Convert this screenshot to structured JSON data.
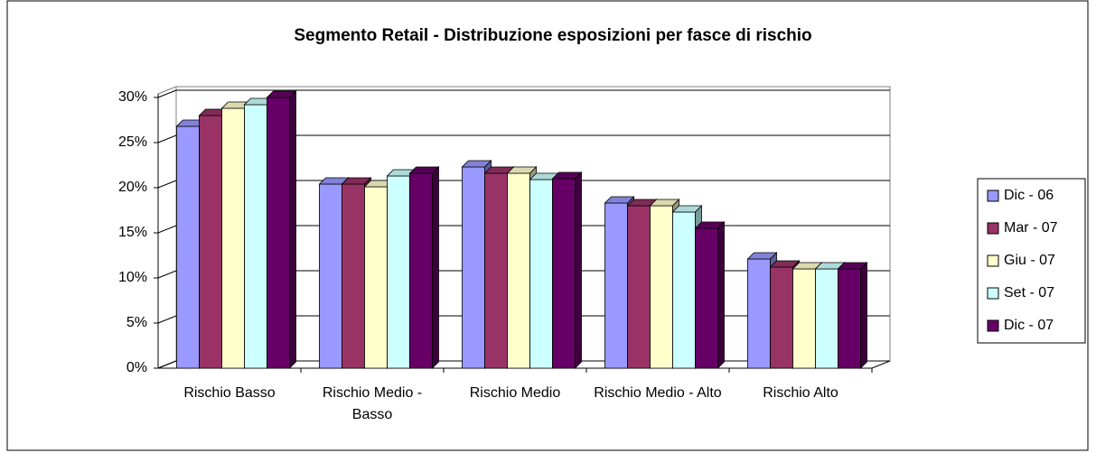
{
  "chart_data": {
    "type": "bar3d",
    "title": "Segmento Retail - Distribuzione esposizioni per fasce di rischio",
    "categories": [
      "Rischio Basso",
      "Rischio Medio - Basso",
      "Rischio Medio",
      "Rischio Medio - Alto",
      "Rischio Alto"
    ],
    "series": [
      {
        "name": "Dic - 06",
        "color": "#9999ff",
        "values": [
          26.8,
          20.4,
          22.3,
          18.3,
          12.1
        ]
      },
      {
        "name": "Mar - 07",
        "color": "#993366",
        "values": [
          28.0,
          20.4,
          21.6,
          18.0,
          11.2
        ]
      },
      {
        "name": "Giu - 07",
        "color": "#ffffcc",
        "values": [
          28.8,
          20.1,
          21.6,
          18.0,
          11.0
        ]
      },
      {
        "name": "Set - 07",
        "color": "#ccffff",
        "values": [
          29.2,
          21.3,
          20.9,
          17.3,
          11.0
        ]
      },
      {
        "name": "Dic - 07",
        "color": "#660066",
        "values": [
          30.0,
          21.6,
          21.0,
          15.5,
          11.0
        ]
      }
    ],
    "ylim": [
      0,
      30
    ],
    "yticks": [
      {
        "value": 0,
        "label": "0%"
      },
      {
        "value": 5,
        "label": "5%"
      },
      {
        "value": 10,
        "label": "10%"
      },
      {
        "value": 15,
        "label": "15%"
      },
      {
        "value": 20,
        "label": "20%"
      },
      {
        "value": 25,
        "label": "25%"
      },
      {
        "value": 30,
        "label": "30%"
      }
    ],
    "grid": true,
    "legend": "right"
  }
}
